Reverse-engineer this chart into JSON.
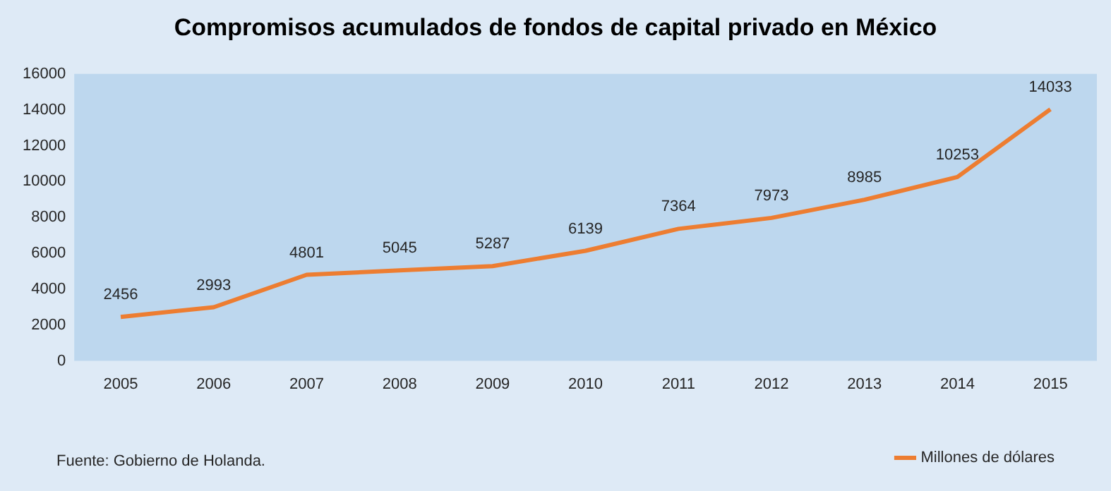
{
  "chart_data": {
    "type": "line",
    "title": "Compromisos acumulados de fondos de capital privado en México",
    "categories": [
      "2005",
      "2006",
      "2007",
      "2008",
      "2009",
      "2010",
      "2011",
      "2012",
      "2013",
      "2014",
      "2015"
    ],
    "series": [
      {
        "name": "Millones de dólares",
        "color": "#ed7d31",
        "values": [
          2456,
          2993,
          4801,
          5045,
          5287,
          6139,
          7364,
          7973,
          8985,
          10253,
          14033
        ]
      }
    ],
    "ylim": [
      0,
      16000
    ],
    "yticks": [
      0,
      2000,
      4000,
      6000,
      8000,
      10000,
      12000,
      14000,
      16000
    ],
    "grid": false,
    "legend": "bottom right",
    "marker": "none",
    "data_labels": true,
    "annotations": [
      "Fuente: Gobierno de Holanda."
    ]
  }
}
